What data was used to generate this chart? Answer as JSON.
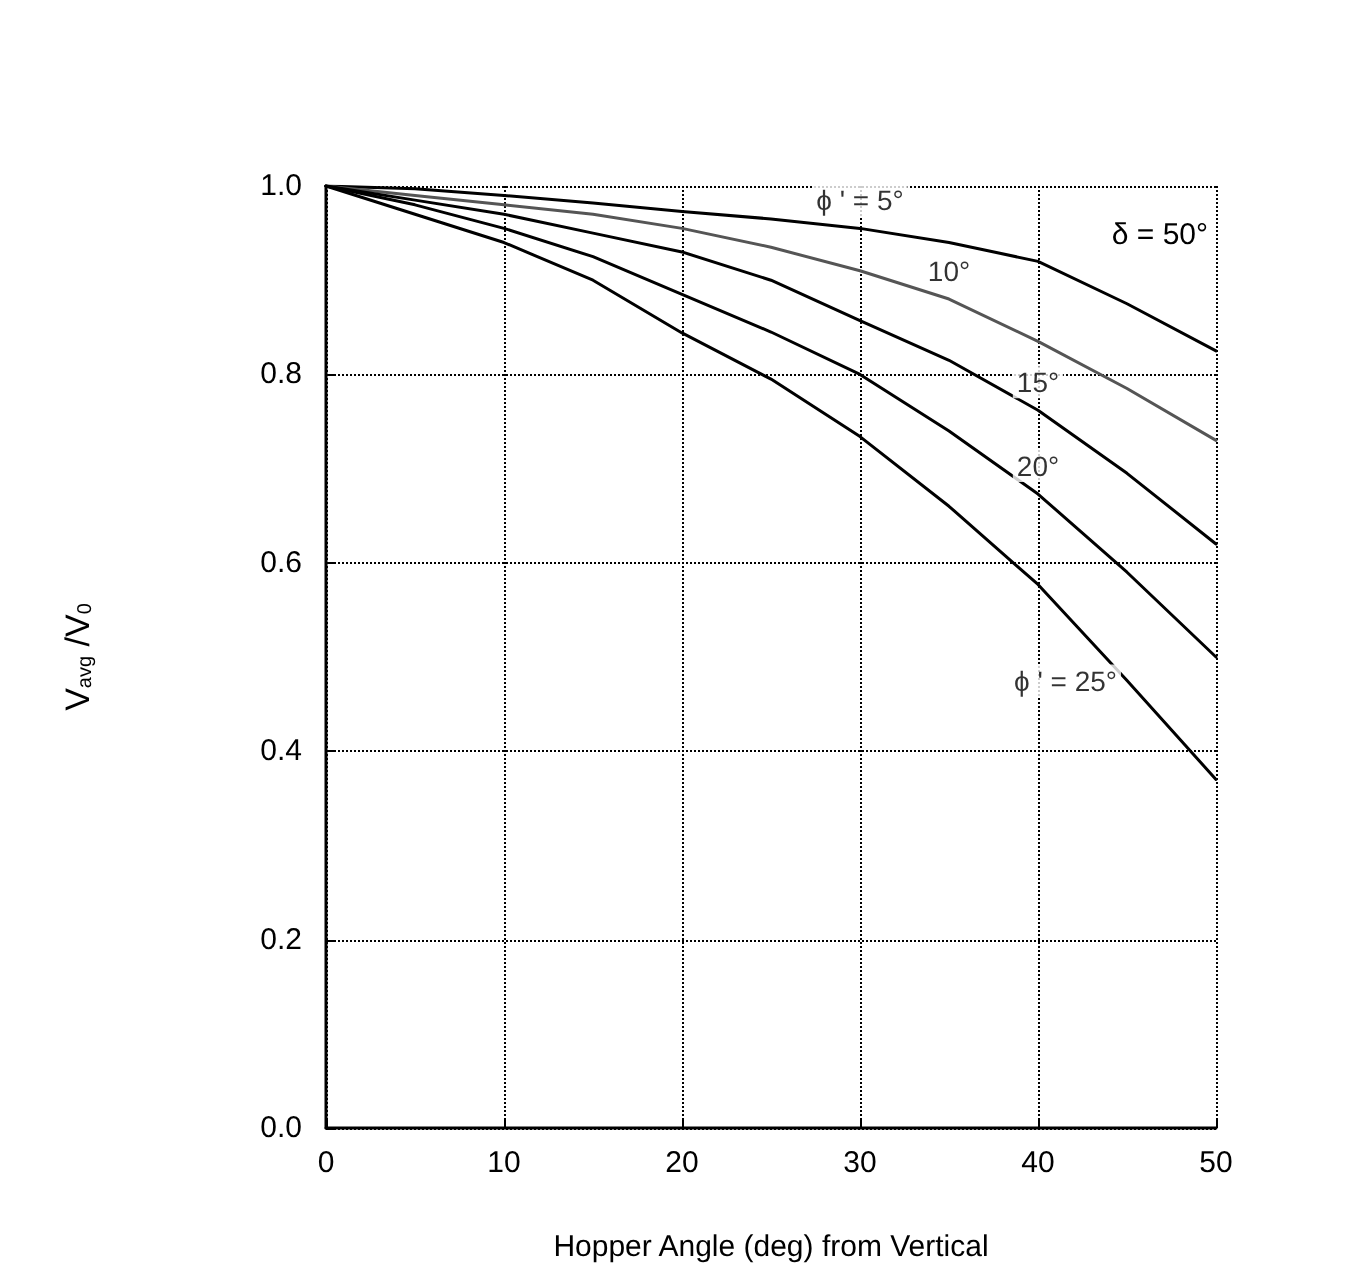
{
  "chart_data": {
    "type": "line",
    "xlabel": "Hopper Angle (deg) from Vertical",
    "ylabel": "V$_{avg}$ /V$_{0}$",
    "x": [
      0,
      5,
      10,
      15,
      20,
      25,
      30,
      35,
      40,
      45,
      50
    ],
    "series": [
      {
        "color": "#000000",
        "values": [
          1,
          0.997,
          0.99,
          0.982,
          0.973,
          0.965,
          0.955,
          0.94,
          0.92,
          0.875,
          0.825
        ]
      },
      {
        "color": "#555555",
        "values": [
          1,
          0.99,
          0.98,
          0.97,
          0.955,
          0.935,
          0.91,
          0.88,
          0.835,
          0.785,
          0.73
        ]
      },
      {
        "color": "#000000",
        "values": [
          1,
          0.985,
          0.97,
          0.95,
          0.93,
          0.9,
          0.857,
          0.815,
          0.762,
          0.695,
          0.62
        ]
      },
      {
        "color": "#000000",
        "values": [
          1,
          0.98,
          0.955,
          0.925,
          0.885,
          0.845,
          0.8,
          0.74,
          0.673,
          0.59,
          0.5
        ]
      },
      {
        "color": "#000000",
        "values": [
          1,
          0.97,
          0.94,
          0.9,
          0.844,
          0.795,
          0.734,
          0.66,
          0.577,
          0.475,
          0.37
        ]
      }
    ],
    "annotations": [
      {
        "text": "ϕ ' = 5°",
        "x": 30,
        "y": 0.955
      },
      {
        "text": "10°",
        "x": 35,
        "y": 0.88
      },
      {
        "text": "15°",
        "x": 40,
        "y": 0.762
      },
      {
        "text": "20°",
        "x": 40,
        "y": 0.673
      },
      {
        "text": "ϕ ' = 25°",
        "x": 45,
        "y": 0.475
      },
      "δ = 50°"
    ],
    "xlim": [
      0,
      50
    ],
    "xticks": [
      0,
      10,
      20,
      30,
      40,
      50
    ],
    "ylim": [
      0,
      1
    ],
    "yticks": [
      {
        "value": 0,
        "label": "0.0"
      },
      {
        "value": 0.2,
        "label": "0.2"
      },
      {
        "value": 0.4,
        "label": "0.4"
      },
      {
        "value": 0.6,
        "label": "0.6"
      },
      {
        "value": 0.8,
        "label": "0.8"
      },
      {
        "value": 1,
        "label": "1.0"
      }
    ],
    "grid": true,
    "legend": false,
    "marker": "none",
    "line_style": "solid"
  }
}
